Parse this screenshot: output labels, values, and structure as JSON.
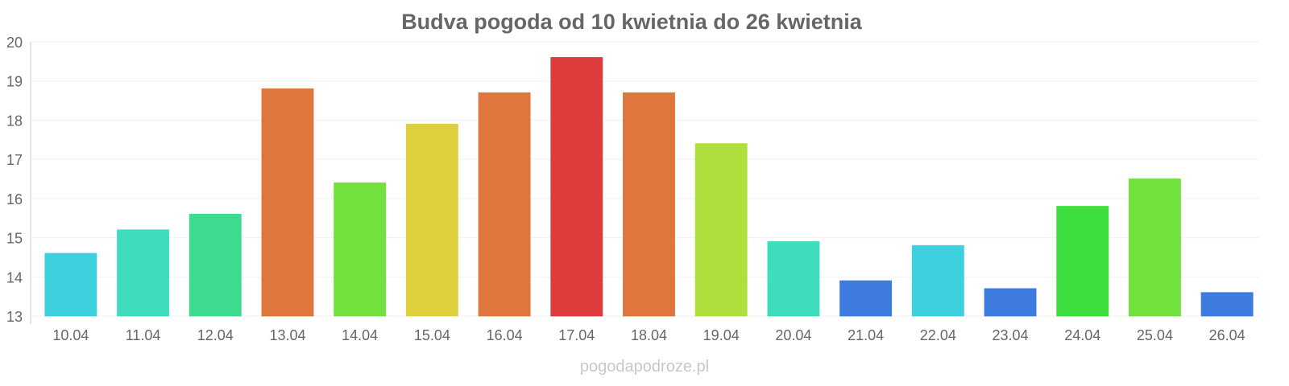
{
  "chart_data": {
    "type": "bar",
    "title": "Budva pogoda od 10 kwietnia do 26 kwietnia",
    "xlabel": "",
    "ylabel": "",
    "ylim": [
      13,
      20
    ],
    "yticks": [
      "13",
      "14",
      "15",
      "16",
      "17",
      "18",
      "19",
      "20"
    ],
    "grid": true,
    "categories": [
      "10.04",
      "11.04",
      "12.04",
      "13.04",
      "14.04",
      "15.04",
      "16.04",
      "17.04",
      "18.04",
      "19.04",
      "20.04",
      "21.04",
      "22.04",
      "23.04",
      "24.04",
      "25.04",
      "26.04"
    ],
    "values": [
      14.6,
      15.2,
      15.6,
      18.8,
      16.4,
      17.9,
      18.7,
      19.6,
      18.7,
      17.4,
      14.9,
      13.9,
      14.8,
      13.7,
      15.8,
      16.5,
      13.6
    ],
    "colors": [
      "#33cedc",
      "#33dbbb",
      "#33d98a",
      "#dd6f33",
      "#6ade33",
      "#dccd33",
      "#dd6f33",
      "#dc3333",
      "#dd6f33",
      "#acdd33",
      "#33dbbb",
      "#3375dc",
      "#33cedc",
      "#3375dc",
      "#33dc33",
      "#6ade33",
      "#3375dc"
    ]
  },
  "footer": "pogodapodroze.pl"
}
